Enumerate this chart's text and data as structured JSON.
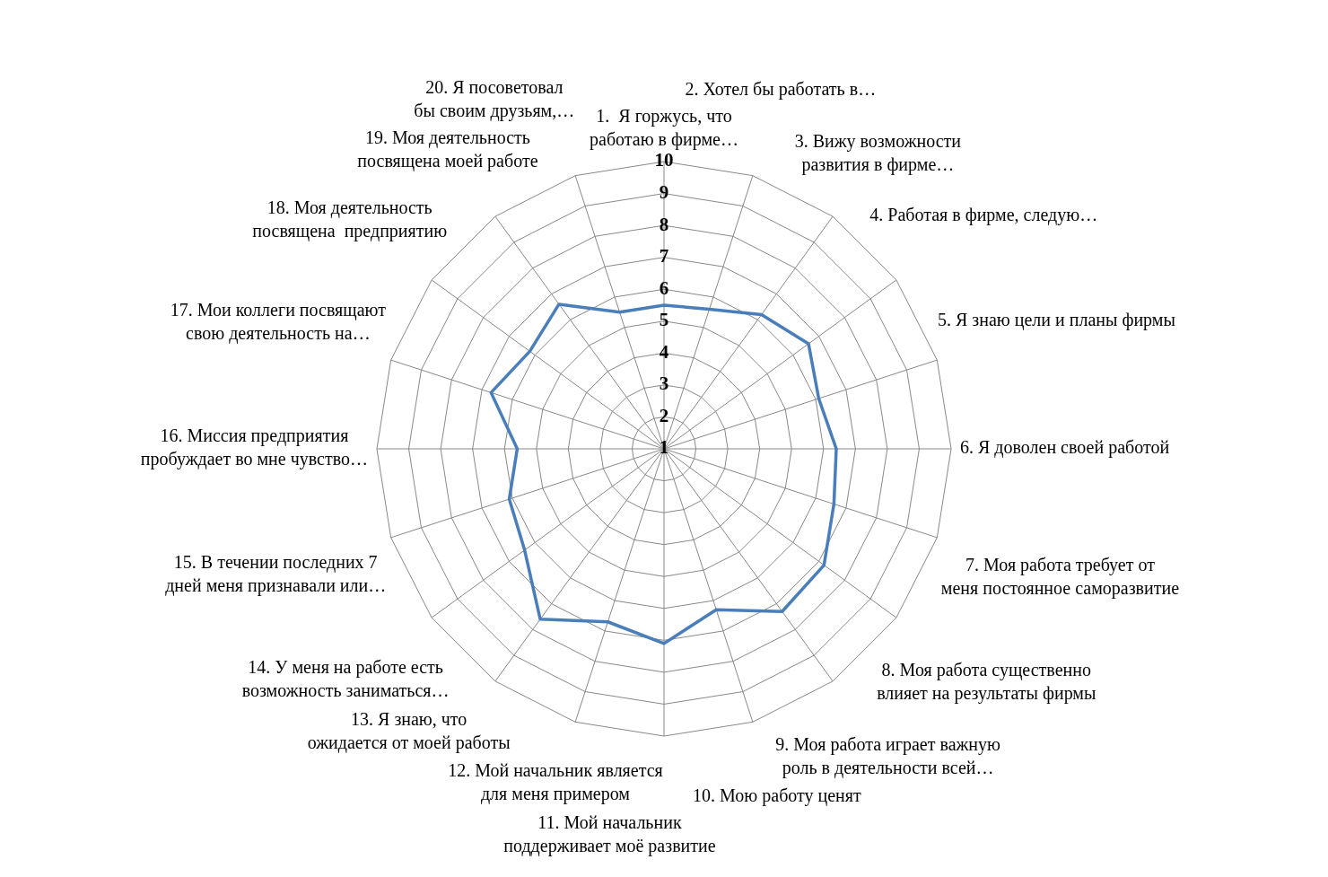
{
  "chart_data": {
    "type": "radar",
    "categories": [
      "1.  Я горжусь, что работаю в фирме…",
      "2. Хотел бы работать в…",
      "3. Вижу возможности развития в фирме…",
      "4. Работая в фирме, следую…",
      "5. Я знаю цели и планы фирмы",
      "6. Я доволен своей работой",
      "7. Моя работа требует от меня постоянное саморазвитие",
      "8. Моя работа существенно влияет на результаты фирмы",
      "9. Моя работа играет важную роль в деятельности всей…",
      "10. Мою работу ценят",
      "11. Мой начальник поддерживает моё развитие",
      "12. Мой начальник является для меня примером",
      "13. Я знаю, что ожидается от моей работы",
      "14. У меня на работе есть возможность заниматься…",
      "15. В течении последних 7 дней меня признавали или…",
      "16. Миссия предприятия пробуждает во мне чувство…",
      "17. Мои коллеги посвящают свою деятельность на…",
      "18. Моя деятельность посвящена  предприятию",
      "19. Моя деятельность посвящена моей работе",
      "20. Я посоветовал бы своим друзьям,…"
    ],
    "series": [
      {
        "color": "#4a7ebb",
        "values": [
          5.5,
          5.6,
          6.2,
          6.6,
          6.1,
          6.4,
          6.6,
          7.2,
          7.3,
          6.3,
          7.1,
          6.7,
          7.6,
          6.4,
          6.1,
          5.6,
          6.7,
          6.2,
          6.6,
          5.5
        ]
      }
    ],
    "ylim": [
      1,
      10
    ],
    "yticks": [
      1,
      2,
      3,
      4,
      5,
      6,
      7,
      8,
      9,
      10
    ],
    "grid": true,
    "legend": false,
    "marker": "none",
    "line_style": "solid"
  }
}
